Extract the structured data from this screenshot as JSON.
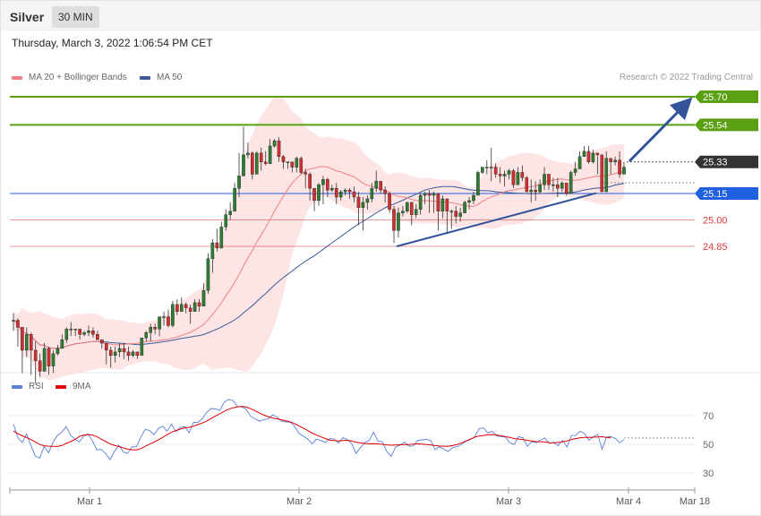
{
  "header": {
    "symbol": "Silver",
    "timeframe": "30 MIN"
  },
  "timestamp": "Thursday, March 3, 2022 1:06:54 PM CET",
  "legend": {
    "ma20": {
      "label": "MA 20 + Bollinger Bands",
      "color": "#f08080"
    },
    "ma50": {
      "label": "MA 50",
      "color": "#3a5a9a"
    }
  },
  "copyright": "Research © 2022 Trading Central",
  "rsi_legend": {
    "rsi": {
      "label": "RSI",
      "color": "#5b7fd6"
    },
    "ma9": {
      "label": "9MA",
      "color": "#dd0000"
    }
  },
  "chart_data": {
    "type": "candlestick",
    "price_range": [
      24.07,
      25.8
    ],
    "x_ticks": [
      "Mar 1",
      "Mar 2",
      "Mar 3",
      "Mar 4",
      "Mar 18"
    ],
    "levels": [
      {
        "label": "25.70",
        "value": 25.7,
        "kind": "target",
        "color": "#5aa012"
      },
      {
        "label": "25.54",
        "value": 25.54,
        "kind": "target",
        "color": "#5aa012"
      },
      {
        "label": "25.33",
        "value": 25.33,
        "kind": "last",
        "color": "#333333"
      },
      {
        "label": "25.15",
        "value": 25.15,
        "kind": "pivot",
        "color": "#1f5fe0"
      },
      {
        "label": "25.00",
        "value": 25.0,
        "kind": "support",
        "color": "#e03a3a"
      },
      {
        "label": "24.85",
        "value": 24.85,
        "kind": "support",
        "color": "#e03a3a"
      }
    ],
    "candles": [
      [
        24.43,
        24.43,
        24.47,
        24.37
      ],
      [
        24.43,
        24.39,
        24.44,
        24.28
      ],
      [
        24.39,
        24.26,
        24.39,
        24.13
      ],
      [
        24.26,
        24.35,
        24.39,
        24.22
      ],
      [
        24.35,
        24.26,
        24.36,
        24.12
      ],
      [
        24.26,
        24.2,
        24.31,
        24.07
      ],
      [
        24.2,
        24.14,
        24.24,
        24.11
      ],
      [
        24.14,
        24.27,
        24.3,
        24.14
      ],
      [
        24.27,
        24.17,
        24.28,
        24.12
      ],
      [
        24.17,
        24.24,
        24.26,
        24.13
      ],
      [
        24.24,
        24.27,
        24.29,
        24.23
      ],
      [
        24.27,
        24.32,
        24.35,
        24.27
      ],
      [
        24.32,
        24.38,
        24.39,
        24.3
      ],
      [
        24.38,
        24.38,
        24.42,
        24.34
      ],
      [
        24.38,
        24.38,
        24.38,
        24.34
      ],
      [
        24.38,
        24.35,
        24.35,
        24.32
      ],
      [
        24.35,
        24.36,
        24.37,
        24.34
      ],
      [
        24.36,
        24.37,
        24.4,
        24.34
      ],
      [
        24.37,
        24.35,
        24.39,
        24.33
      ],
      [
        24.35,
        24.32,
        24.37,
        24.32
      ],
      [
        24.32,
        24.3,
        24.32,
        24.27
      ],
      [
        24.3,
        24.26,
        24.3,
        24.18
      ],
      [
        24.26,
        24.23,
        24.28,
        24.16
      ],
      [
        24.23,
        24.25,
        24.28,
        24.19
      ],
      [
        24.25,
        24.27,
        24.3,
        24.22
      ],
      [
        24.27,
        24.25,
        24.3,
        24.21
      ],
      [
        24.25,
        24.23,
        24.28,
        24.2
      ],
      [
        24.23,
        24.25,
        24.26,
        24.22
      ],
      [
        24.25,
        24.23,
        24.25,
        24.21
      ],
      [
        24.23,
        24.33,
        24.33,
        24.23
      ],
      [
        24.33,
        24.36,
        24.37,
        24.31
      ],
      [
        24.36,
        24.39,
        24.41,
        24.31
      ],
      [
        24.39,
        24.38,
        24.41,
        24.35
      ],
      [
        24.38,
        24.45,
        24.45,
        24.34
      ],
      [
        24.45,
        24.45,
        24.48,
        24.4
      ],
      [
        24.45,
        24.4,
        24.49,
        24.39
      ],
      [
        24.4,
        24.52,
        24.54,
        24.39
      ],
      [
        24.52,
        24.48,
        24.55,
        24.46
      ],
      [
        24.48,
        24.52,
        24.56,
        24.48
      ],
      [
        24.52,
        24.5,
        24.53,
        24.47
      ],
      [
        24.5,
        24.48,
        24.52,
        24.41
      ],
      [
        24.48,
        24.53,
        24.55,
        24.48
      ],
      [
        24.53,
        24.51,
        24.55,
        24.48
      ],
      [
        24.51,
        24.6,
        24.64,
        24.51
      ],
      [
        24.6,
        24.78,
        24.81,
        24.58
      ],
      [
        24.78,
        24.87,
        24.89,
        24.7
      ],
      [
        24.87,
        24.84,
        24.95,
        24.82
      ],
      [
        24.84,
        24.96,
        24.99,
        24.84
      ],
      [
        24.96,
        25.03,
        25.06,
        24.94
      ],
      [
        25.03,
        25.05,
        25.1,
        25.0
      ],
      [
        25.05,
        25.18,
        25.21,
        25.05
      ],
      [
        25.18,
        25.25,
        25.38,
        25.13
      ],
      [
        25.25,
        25.37,
        25.53,
        25.25
      ],
      [
        25.37,
        25.38,
        25.44,
        25.35
      ],
      [
        25.38,
        25.26,
        25.39,
        25.23
      ],
      [
        25.26,
        25.38,
        25.39,
        25.26
      ],
      [
        25.38,
        25.33,
        25.41,
        25.28
      ],
      [
        25.33,
        25.32,
        25.39,
        25.31
      ],
      [
        25.32,
        25.42,
        25.46,
        25.32
      ],
      [
        25.42,
        25.45,
        25.46,
        25.41
      ],
      [
        25.45,
        25.36,
        25.47,
        25.33
      ],
      [
        25.36,
        25.33,
        25.37,
        25.29
      ],
      [
        25.33,
        25.33,
        25.33,
        25.29
      ],
      [
        25.33,
        25.3,
        25.33,
        25.27
      ],
      [
        25.3,
        25.35,
        25.36,
        25.27
      ],
      [
        25.35,
        25.27,
        25.36,
        25.26
      ],
      [
        25.27,
        25.26,
        25.29,
        25.18
      ],
      [
        25.26,
        25.18,
        25.27,
        25.11
      ],
      [
        25.18,
        25.11,
        25.18,
        25.05
      ],
      [
        25.11,
        25.2,
        25.21,
        25.08
      ],
      [
        25.2,
        25.23,
        25.25,
        25.09
      ],
      [
        25.23,
        25.17,
        25.24,
        25.13
      ],
      [
        25.17,
        25.18,
        25.2,
        25.16
      ],
      [
        25.18,
        25.13,
        25.21,
        25.09
      ],
      [
        25.13,
        25.16,
        25.17,
        25.11
      ],
      [
        25.16,
        25.17,
        25.18,
        25.14
      ],
      [
        25.17,
        25.16,
        25.18,
        25.12
      ],
      [
        25.16,
        25.13,
        25.19,
        25.1
      ],
      [
        25.13,
        25.07,
        25.16,
        24.97
      ],
      [
        25.07,
        25.1,
        25.13,
        24.94
      ],
      [
        25.1,
        25.12,
        25.14,
        25.06
      ],
      [
        25.12,
        25.18,
        25.21,
        25.1
      ],
      [
        25.18,
        25.22,
        25.28,
        25.16
      ],
      [
        25.22,
        25.17,
        25.22,
        25.15
      ],
      [
        25.17,
        25.15,
        25.19,
        25.1
      ],
      [
        25.15,
        25.06,
        25.16,
        25.04
      ],
      [
        25.06,
        24.94,
        25.08,
        24.87
      ],
      [
        24.94,
        25.04,
        25.07,
        24.9
      ],
      [
        25.04,
        25.05,
        25.08,
        25.02
      ],
      [
        25.05,
        25.1,
        25.1,
        25.04
      ],
      [
        25.1,
        25.03,
        25.1,
        24.97
      ],
      [
        25.03,
        25.06,
        25.09,
        25.01
      ],
      [
        25.06,
        25.14,
        25.15,
        25.03
      ],
      [
        25.14,
        25.15,
        25.16,
        25.09
      ],
      [
        25.15,
        25.14,
        25.17,
        25.04
      ],
      [
        25.14,
        25.15,
        25.16,
        25.04
      ],
      [
        25.15,
        25.05,
        25.15,
        24.94
      ],
      [
        25.05,
        25.12,
        25.14,
        25.01
      ],
      [
        25.12,
        25.05,
        25.12,
        24.92
      ],
      [
        25.05,
        25.05,
        25.06,
        24.95
      ],
      [
        25.05,
        25.02,
        25.08,
        24.98
      ],
      [
        25.02,
        25.04,
        25.07,
        24.99
      ],
      [
        25.04,
        25.1,
        25.11,
        25.04
      ],
      [
        25.1,
        25.11,
        25.13,
        25.06
      ],
      [
        25.11,
        25.14,
        25.16,
        25.09
      ],
      [
        25.14,
        25.27,
        25.28,
        25.14
      ],
      [
        25.27,
        25.3,
        25.3,
        25.26
      ],
      [
        25.3,
        25.3,
        25.34,
        25.26
      ],
      [
        25.3,
        25.3,
        25.41,
        25.22
      ],
      [
        25.3,
        25.26,
        25.32,
        25.24
      ],
      [
        25.26,
        25.25,
        25.3,
        25.21
      ],
      [
        25.25,
        25.26,
        25.28,
        25.19
      ],
      [
        25.26,
        25.28,
        25.29,
        25.23
      ],
      [
        25.28,
        25.2,
        25.29,
        25.18
      ],
      [
        25.2,
        25.27,
        25.3,
        25.2
      ],
      [
        25.27,
        25.24,
        25.31,
        25.22
      ],
      [
        25.24,
        25.16,
        25.25,
        25.16
      ],
      [
        25.16,
        25.17,
        25.23,
        25.1
      ],
      [
        25.17,
        25.16,
        25.22,
        25.11
      ],
      [
        25.16,
        25.2,
        25.23,
        25.15
      ],
      [
        25.2,
        25.26,
        25.3,
        25.17
      ],
      [
        25.26,
        25.2,
        25.26,
        25.17
      ],
      [
        25.2,
        25.2,
        25.24,
        25.16
      ],
      [
        25.2,
        25.18,
        25.24,
        25.13
      ],
      [
        25.18,
        25.21,
        25.22,
        25.16
      ],
      [
        25.21,
        25.15,
        25.21,
        25.14
      ],
      [
        25.15,
        25.27,
        25.28,
        25.15
      ],
      [
        25.27,
        25.29,
        25.33,
        25.25
      ],
      [
        25.29,
        25.36,
        25.39,
        25.29
      ],
      [
        25.36,
        25.39,
        25.42,
        25.36
      ],
      [
        25.39,
        25.33,
        25.42,
        25.32
      ],
      [
        25.33,
        25.38,
        25.4,
        25.32
      ],
      [
        25.38,
        25.37,
        25.38,
        25.26
      ],
      [
        25.37,
        25.16,
        25.37,
        25.16
      ],
      [
        25.16,
        25.35,
        25.39,
        25.17
      ],
      [
        25.35,
        25.33,
        25.35,
        25.26
      ],
      [
        25.33,
        25.34,
        25.36,
        25.31
      ],
      [
        25.34,
        25.26,
        25.39,
        25.24
      ],
      [
        25.26,
        25.3,
        25.33,
        25.27
      ]
    ],
    "targets_arrow": {
      "from": [
        25.33,
        25.33
      ],
      "to": [
        25.7,
        25.7
      ]
    },
    "trendline": {
      "from_value": 24.85,
      "to_value": 25.15
    },
    "rsi": {
      "levels": [
        70,
        50,
        30
      ],
      "range": [
        19,
        82
      ],
      "rsi_values": [
        64.1,
        54.7,
        51.4,
        57.2,
        49.1,
        41.8,
        40.4,
        48.6,
        44.1,
        51.5,
        56.2,
        58.5,
        62.4,
        56.3,
        53.6,
        51.7,
        55.8,
        57.3,
        52.3,
        46.2,
        46.5,
        43.5,
        39.4,
        45.1,
        49.4,
        44.7,
        43.7,
        48.2,
        48.3,
        55.1,
        60.4,
        59.7,
        56.7,
        61.0,
        62.6,
        59.2,
        64.1,
        58.9,
        61.8,
        62.3,
        58.1,
        65.3,
        65.4,
        67.9,
        72.3,
        75.0,
        74.7,
        73.7,
        79.5,
        81.4,
        80.6,
        76.4,
        76.1,
        74.4,
        69.6,
        67.8,
        66.1,
        67.2,
        67.8,
        70.6,
        69.1,
        66.2,
        65.6,
        65.5,
        62.6,
        57.6,
        55.7,
        53.7,
        50.4,
        53.8,
        52.6,
        51.4,
        54.0,
        53.7,
        50.9,
        54.7,
        53.4,
        50.5,
        43.6,
        47.7,
        51.2,
        52.7,
        58.5,
        52.1,
        51.9,
        44.9,
        41.7,
        48.1,
        49.4,
        51.6,
        48.7,
        48.9,
        52.6,
        53.1,
        53.5,
        52.6,
        46.3,
        48.3,
        46.5,
        45.0,
        47.7,
        48.4,
        49.8,
        52.1,
        53.3,
        55.3,
        60.8,
        61.5,
        58.0,
        59.1,
        55.8,
        55.4,
        55.1,
        51.1,
        49.9,
        55.4,
        54.5,
        48.6,
        51.8,
        51.2,
        53.1,
        54.4,
        50.6,
        51.5,
        49.0,
        52.8,
        48.1,
        56.1,
        56.2,
        59.1,
        57.6,
        52.9,
        55.1,
        57.0,
        46.6,
        55.1,
        55.3,
        54.2,
        51.1,
        53.3
      ],
      "ma9_values": [
        59.3,
        57.5,
        56.0,
        54.8,
        53.3,
        51.7,
        49.9,
        49.0,
        48.7,
        48.6,
        48.5,
        49.1,
        50.6,
        51.9,
        53.4,
        55.5,
        56.5,
        56.8,
        56.5,
        55.4,
        53.6,
        52.0,
        50.4,
        49.3,
        48.5,
        47.5,
        46.6,
        46.2,
        46.2,
        47.0,
        48.6,
        50.1,
        51.5,
        53.2,
        54.9,
        56.9,
        58.5,
        59.6,
        60.6,
        61.5,
        61.9,
        62.6,
        63.8,
        64.9,
        66.2,
        68.0,
        69.8,
        71.4,
        73.0,
        74.5,
        75.5,
        76.2,
        76.5,
        76.0,
        74.9,
        73.4,
        71.8,
        70.4,
        69.3,
        68.4,
        67.8,
        67.1,
        66.5,
        65.7,
        64.5,
        62.9,
        61.3,
        59.6,
        57.8,
        56.5,
        55.2,
        54.0,
        53.0,
        52.6,
        52.4,
        52.6,
        52.8,
        52.3,
        51.5,
        51.0,
        50.6,
        50.3,
        50.4,
        50.3,
        50.0,
        49.6,
        49.4,
        49.5,
        49.7,
        49.9,
        49.9,
        50.1,
        50.3,
        50.2,
        49.9,
        49.6,
        49.1,
        48.8,
        48.7,
        48.7,
        49.1,
        49.8,
        51.0,
        52.3,
        53.6,
        55.0,
        55.8,
        56.2,
        56.7,
        56.8,
        56.5,
        56.0,
        55.3,
        54.8,
        54.0,
        53.7,
        53.3,
        52.8,
        52.3,
        51.9,
        51.8,
        51.6,
        51.1,
        51.0,
        51.3,
        51.7,
        52.4,
        53.3,
        54.0,
        54.5,
        54.9,
        54.8,
        55.0,
        55.1,
        55.3,
        54.9,
        54.6
      ]
    }
  }
}
